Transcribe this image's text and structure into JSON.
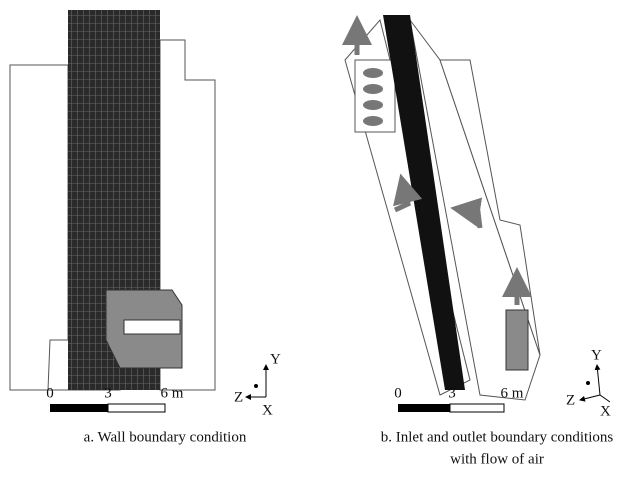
{
  "panels": [
    {
      "scale_labels": [
        "0",
        "3",
        "6 m"
      ],
      "axes": {
        "y": "Y",
        "z": "Z",
        "x": "X"
      },
      "caption": [
        "a. Wall boundary condition"
      ]
    },
    {
      "scale_labels": [
        "0",
        "3",
        "6 m"
      ],
      "axes": {
        "y": "Y",
        "z": "Z",
        "x": "X"
      },
      "caption": [
        "b. Inlet and outlet boundary conditions",
        "with flow of air"
      ]
    }
  ]
}
